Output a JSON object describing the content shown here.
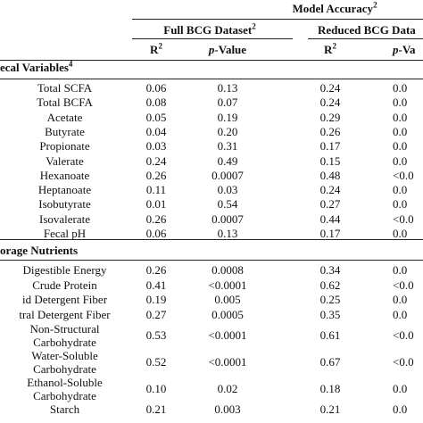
{
  "header": {
    "model_accuracy": "Model Accuracy",
    "model_accuracy_sup": "2",
    "full_dataset": "Full BCG Dataset",
    "full_dataset_sup": "2",
    "reduced_dataset": "Reduced BCG Data",
    "r2_label": "R",
    "r2_sup": "2",
    "pvalue_italic": "p",
    "pvalue_rest": "-Value",
    "pvalue_clipped": "p-Va"
  },
  "sections": [
    {
      "title": "ecal Variables",
      "title_sup": "4",
      "rows": [
        {
          "label": "Total SCFA",
          "r2_full": "0.06",
          "p_full": "0.13",
          "r2_red": "0.24",
          "p_red": "0.0"
        },
        {
          "label": "Total BCFA",
          "r2_full": "0.08",
          "p_full": "0.07",
          "r2_red": "0.24",
          "p_red": "0.0"
        },
        {
          "label": "Acetate",
          "r2_full": "0.05",
          "p_full": "0.19",
          "r2_red": "0.29",
          "p_red": "0.0"
        },
        {
          "label": "Butyrate",
          "r2_full": "0.04",
          "p_full": "0.20",
          "r2_red": "0.26",
          "p_red": "0.0"
        },
        {
          "label": "Propionate",
          "r2_full": "0.03",
          "p_full": "0.31",
          "r2_red": "0.17",
          "p_red": "0.0"
        },
        {
          "label": "Valerate",
          "r2_full": "0.24",
          "p_full": "0.49",
          "r2_red": "0.15",
          "p_red": "0.0"
        },
        {
          "label": "Hexanoate",
          "r2_full": "0.26",
          "p_full": "0.0007",
          "r2_red": "0.48",
          "p_red": "<0.0"
        },
        {
          "label": "Heptanoate",
          "r2_full": "0.11",
          "p_full": "0.03",
          "r2_red": "0.24",
          "p_red": "0.0"
        },
        {
          "label": "Isobutyrate",
          "r2_full": "0.01",
          "p_full": "0.54",
          "r2_red": "0.27",
          "p_red": "0.0"
        },
        {
          "label": "Isovalerate",
          "r2_full": "0.26",
          "p_full": "0.0007",
          "r2_red": "0.44",
          "p_red": "<0.0"
        },
        {
          "label": "Fecal pH",
          "r2_full": "0.06",
          "p_full": "0.13",
          "r2_red": "0.17",
          "p_red": "0.0"
        }
      ]
    },
    {
      "title": "orage Nutrients",
      "rows": [
        {
          "label_lines": [
            "Digestible Energy"
          ],
          "r2_full": "0.26",
          "p_full": "0.0008",
          "r2_red": "0.34",
          "p_red": "0.0"
        },
        {
          "label_lines": [
            "Crude Protein"
          ],
          "r2_full": "0.41",
          "p_full": "<0.0001",
          "r2_red": "0.62",
          "p_red": "<0.0"
        },
        {
          "label_lines": [
            "id Detergent Fiber"
          ],
          "r2_full": "0.19",
          "p_full": "0.005",
          "r2_red": "0.25",
          "p_red": "0.0"
        },
        {
          "label_lines": [
            "tral Detergent Fiber"
          ],
          "r2_full": "0.27",
          "p_full": "0.0005",
          "r2_red": "0.35",
          "p_red": "0.0"
        },
        {
          "label_lines": [
            "Non-Structural",
            "Carbohydrate"
          ],
          "r2_full": "0.53",
          "p_full": "<0.0001",
          "r2_red": "0.61",
          "p_red": "<0.0"
        },
        {
          "label_lines": [
            "Water-Soluble",
            "Carbohydrate"
          ],
          "r2_full": "0.52",
          "p_full": "<0.0001",
          "r2_red": "0.67",
          "p_red": "<0.0"
        },
        {
          "label_lines": [
            "Ethanol-Soluble",
            "Carbohydrate"
          ],
          "r2_full": "0.10",
          "p_full": "0.02",
          "r2_red": "0.18",
          "p_red": "0.0"
        },
        {
          "label_lines": [
            "Starch"
          ],
          "r2_full": "0.21",
          "p_full": "0.003",
          "r2_red": "0.21",
          "p_red": "0.0"
        }
      ]
    }
  ]
}
